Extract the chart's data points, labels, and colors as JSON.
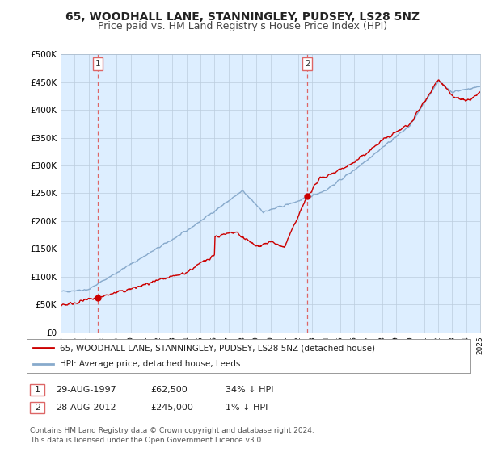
{
  "title": "65, WOODHALL LANE, STANNINGLEY, PUDSEY, LS28 5NZ",
  "subtitle": "Price paid vs. HM Land Registry's House Price Index (HPI)",
  "title_fontsize": 10,
  "subtitle_fontsize": 9,
  "ylim": [
    0,
    500000
  ],
  "yticks": [
    0,
    50000,
    100000,
    150000,
    200000,
    250000,
    300000,
    350000,
    400000,
    450000,
    500000
  ],
  "ytick_labels": [
    "£0",
    "£50K",
    "£100K",
    "£150K",
    "£200K",
    "£250K",
    "£300K",
    "£350K",
    "£400K",
    "£450K",
    "£500K"
  ],
  "sale1_year": 1997.65,
  "sale1_price": 62500,
  "sale2_year": 2012.65,
  "sale2_price": 245000,
  "red_color": "#cc0000",
  "blue_color": "#88aacc",
  "vline_color": "#dd6666",
  "chart_bg": "#ddeeff",
  "legend_line1": "65, WOODHALL LANE, STANNINGLEY, PUDSEY, LS28 5NZ (detached house)",
  "legend_line2": "HPI: Average price, detached house, Leeds",
  "table_row1": [
    "1",
    "29-AUG-1997",
    "£62,500",
    "34% ↓ HPI"
  ],
  "table_row2": [
    "2",
    "28-AUG-2012",
    "£245,000",
    "1% ↓ HPI"
  ],
  "footer": "Contains HM Land Registry data © Crown copyright and database right 2024.\nThis data is licensed under the Open Government Licence v3.0.",
  "background_color": "#ffffff",
  "grid_color": "#bbccdd"
}
